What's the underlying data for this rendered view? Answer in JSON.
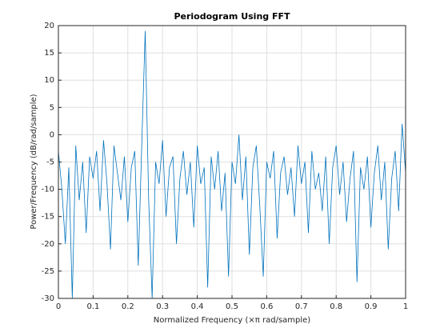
{
  "chart_data": {
    "type": "line",
    "title": "Periodogram Using FFT",
    "xlabel": "Normalized Frequency (×π rad/sample)",
    "ylabel": "Power/Frequency (dB/rad/sample)",
    "x": [
      0,
      0.01,
      0.02,
      0.03,
      0.04,
      0.05,
      0.06,
      0.07,
      0.08,
      0.09,
      0.1,
      0.11,
      0.12,
      0.13,
      0.14,
      0.15,
      0.16,
      0.17,
      0.18,
      0.19,
      0.2,
      0.21,
      0.22,
      0.23,
      0.24,
      0.25,
      0.26,
      0.27,
      0.28,
      0.29,
      0.3,
      0.31,
      0.32,
      0.33,
      0.34,
      0.35,
      0.36,
      0.37,
      0.38,
      0.39,
      0.4,
      0.41,
      0.42,
      0.43,
      0.44,
      0.45,
      0.46,
      0.47,
      0.48,
      0.49,
      0.5,
      0.51,
      0.52,
      0.53,
      0.54,
      0.55,
      0.56,
      0.57,
      0.58,
      0.59,
      0.6,
      0.61,
      0.62,
      0.63,
      0.64,
      0.65,
      0.66,
      0.67,
      0.68,
      0.69,
      0.7,
      0.71,
      0.72,
      0.73,
      0.74,
      0.75,
      0.76,
      0.77,
      0.78,
      0.79,
      0.8,
      0.81,
      0.82,
      0.83,
      0.84,
      0.85,
      0.86,
      0.87,
      0.88,
      0.89,
      0.9,
      0.91,
      0.92,
      0.93,
      0.94,
      0.95,
      0.96,
      0.97,
      0.98,
      0.99,
      1
    ],
    "series": [
      {
        "color": "#0072bd",
        "values": [
          -3,
          -10,
          -20,
          -6,
          -30,
          -2,
          -12,
          -5,
          -18,
          -4,
          -8,
          -3,
          -14,
          -1,
          -9,
          -21,
          -2,
          -7,
          -12,
          -4,
          -16,
          -6,
          -3,
          -24,
          -2,
          19,
          -12,
          -30,
          -5,
          -9,
          -1,
          -15,
          -6,
          -4,
          -20,
          -8,
          -3,
          -11,
          -5,
          -17,
          -2,
          -9,
          -6,
          -28,
          -4,
          -10,
          -3,
          -14,
          -7,
          -26,
          -5,
          -9,
          0,
          -12,
          -4,
          -22,
          -6,
          -2,
          -13,
          -26,
          -5,
          -8,
          -3,
          -19,
          -7,
          -4,
          -11,
          -6,
          -15,
          -2,
          -9,
          -5,
          -18,
          -3,
          -10,
          -7,
          -14,
          -4,
          -20,
          -6,
          -2,
          -11,
          -5,
          -16,
          -8,
          -3,
          -27,
          -6,
          -10,
          -4,
          -17,
          -7,
          -2,
          -12,
          -5,
          -21,
          -8,
          -3,
          -14,
          2,
          -7
        ]
      }
    ],
    "xlim": [
      0,
      1
    ],
    "xticks": [
      0,
      0.1,
      0.2,
      0.3,
      0.4,
      0.5,
      0.6,
      0.7,
      0.8,
      0.9,
      1
    ],
    "ylim": [
      -30,
      20
    ],
    "yticks": [
      -30,
      -25,
      -20,
      -15,
      -10,
      -5,
      0,
      5,
      10,
      15,
      20
    ],
    "grid": true
  }
}
